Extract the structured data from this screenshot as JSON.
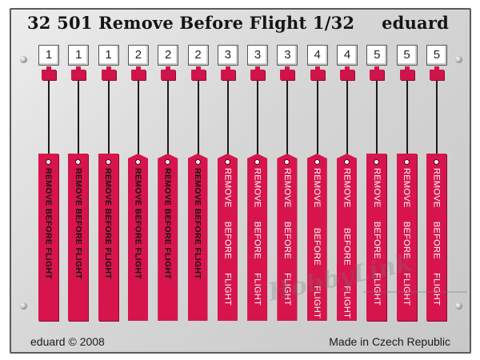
{
  "header": {
    "title": "32 501  Remove Before Flight  1/32",
    "brand": "eduard"
  },
  "tags": [
    {
      "number": "1",
      "label": "REMOVE BEFORE FLIGHT"
    },
    {
      "number": "1",
      "label": "REMOVE BEFORE FLIGHT"
    },
    {
      "number": "1",
      "label": "REMOVE BEFORE FLIGHT"
    },
    {
      "number": "2",
      "label": "REMOVE BEFORE FLIGHT"
    },
    {
      "number": "2",
      "label": "REMOVE BEFORE FLIGHT"
    },
    {
      "number": "2",
      "label": "REMOVE BEFORE FLIGHT"
    },
    {
      "number": "3",
      "label": "REMOVE BEFORE FLIGHT"
    },
    {
      "number": "3",
      "label": "REMOVE BEFORE FLIGHT"
    },
    {
      "number": "3",
      "label": "REMOVE BEFORE FLIGHT"
    },
    {
      "number": "4",
      "label": "REMOVE BEFORE FLIGHT"
    },
    {
      "number": "4",
      "label": "REMOVE BEFORE FLIGHT"
    },
    {
      "number": "5",
      "label": "REMOVE BEFORE FLIGHT"
    },
    {
      "number": "5",
      "label": "REMOVE BEFORE FLIGHT"
    },
    {
      "number": "5",
      "label": "REMOVE BEFORE FLIGHT"
    }
  ],
  "footer": {
    "copyright": "eduard © 2008",
    "origin": "Made in Czech Republic"
  },
  "watermark": {
    "text": "HobbyLink"
  },
  "colors": {
    "tag_red": "#d7154c",
    "fret_metal": "#d6d6d6"
  }
}
